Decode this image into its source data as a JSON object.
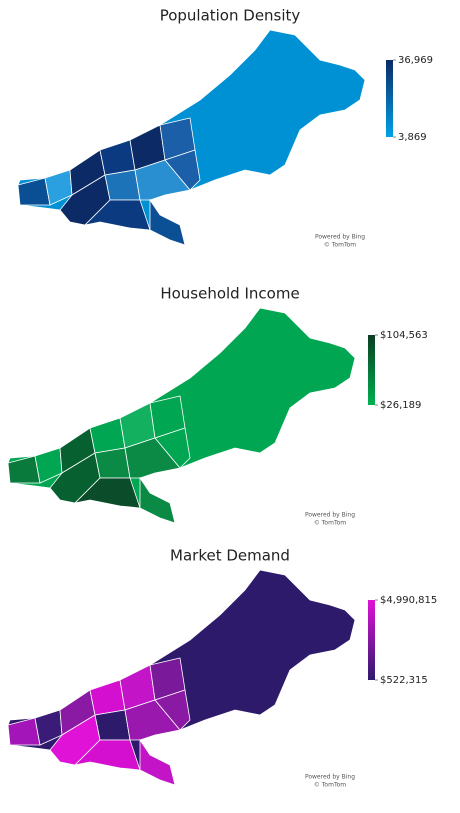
{
  "maps": [
    {
      "title": "Population Density",
      "legend": {
        "max": {
          "value": 36969,
          "label": "36,969"
        },
        "min": {
          "value": 3869,
          "label": "3,869"
        },
        "colors": {
          "low": "#00a2e8",
          "high": "#0b2a66"
        }
      },
      "attribution": [
        "Powered by Bing",
        "© TomTom"
      ]
    },
    {
      "title": "Household Income",
      "legend": {
        "max": {
          "value": 104563,
          "label": "$104,563"
        },
        "min": {
          "value": 26189,
          "label": "$26,189"
        },
        "colors": {
          "low": "#00b050",
          "high": "#0b3d22"
        }
      },
      "attribution": [
        "Powered by Bing",
        "© TomTom"
      ]
    },
    {
      "title": "Market Demand",
      "legend": {
        "max": {
          "value": 4990815,
          "label": "$4,990,815"
        },
        "min": {
          "value": 522315,
          "label": "$522,315"
        },
        "colors": {
          "low": "#2d1a6b",
          "high": "#e012d8"
        }
      },
      "attribution": [
        "Powered by Bing",
        "© TomTom"
      ]
    }
  ]
}
